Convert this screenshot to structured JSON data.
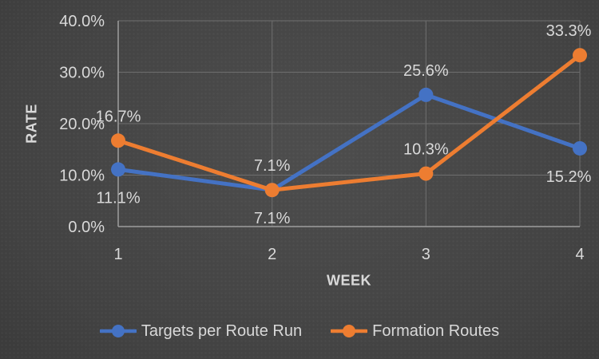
{
  "chart_data": {
    "type": "line",
    "x": [
      "1",
      "2",
      "3",
      "4"
    ],
    "xlabel": "WEEK",
    "ylabel": "RATE",
    "ylim": [
      0,
      40
    ],
    "ytick_values": [
      0,
      10,
      20,
      30,
      40
    ],
    "yticks": [
      "0.0%",
      "10.0%",
      "20.0%",
      "30.0%",
      "40.0%"
    ],
    "grid": true,
    "legend_position": "bottom",
    "series": [
      {
        "name": "Targets per Route Run",
        "color": "#4472C4",
        "values": [
          11.1,
          7.1,
          25.6,
          15.2
        ],
        "labels": [
          "11.1%",
          "7.1%",
          "25.6%",
          "15.2%"
        ],
        "label_placements": [
          "below",
          "above",
          "above",
          "below"
        ]
      },
      {
        "name": "Formation Routes",
        "color": "#ED7D31",
        "values": [
          16.7,
          7.1,
          10.3,
          33.3
        ],
        "labels": [
          "16.7%",
          "7.1%",
          "10.3%",
          "33.3%"
        ],
        "label_placements": [
          "above",
          "below",
          "above",
          "above"
        ]
      }
    ]
  },
  "colors": {
    "background_center": "#4d4d4d",
    "background_edge": "#272727",
    "gridline": "#6f6f6f",
    "axis_line": "#9d9d9d",
    "text": "#d9d9d9",
    "series_blue": "#4472C4",
    "series_orange": "#ED7D31"
  }
}
